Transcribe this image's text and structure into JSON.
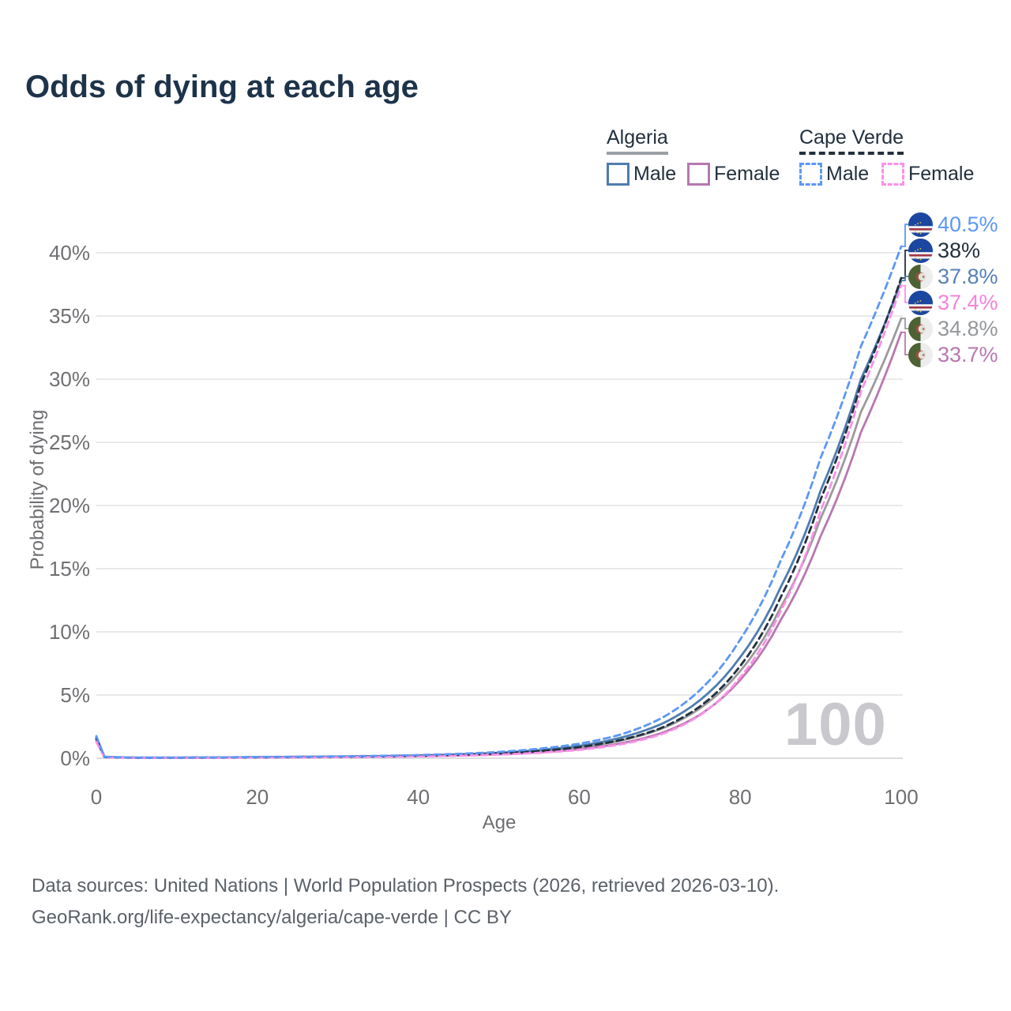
{
  "title": "Odds of dying at each age",
  "watermark": "100",
  "legend": {
    "groups": [
      {
        "name": "Algeria",
        "line_style": "solid",
        "line_color": "#9aa0a6",
        "items": [
          {
            "label": "Male",
            "color": "#4f7cb0"
          },
          {
            "label": "Female",
            "color": "#b778b0"
          }
        ]
      },
      {
        "name": "Cape Verde",
        "line_style": "dashed",
        "line_color": "#22303e",
        "items": [
          {
            "label": "Male",
            "color": "#5d97f5"
          },
          {
            "label": "Female",
            "color": "#fb90e8"
          }
        ]
      }
    ]
  },
  "chart_data": {
    "type": "line",
    "title": "Odds of dying at each age",
    "xlabel": "Age",
    "ylabel": "Probability of dying",
    "xlim": [
      0,
      100
    ],
    "ylim_percent": [
      0,
      42
    ],
    "xticks": [
      0,
      20,
      40,
      60,
      80,
      100
    ],
    "yticks_percent": [
      0,
      5,
      10,
      15,
      20,
      25,
      30,
      35,
      40
    ],
    "ytick_labels": [
      "0%",
      "5%",
      "10%",
      "15%",
      "20%",
      "25%",
      "30%",
      "35%",
      "40%"
    ],
    "grid": "horizontal",
    "legend_position": "top-right",
    "ages": [
      0,
      1,
      5,
      10,
      15,
      20,
      25,
      30,
      35,
      40,
      45,
      50,
      55,
      60,
      65,
      70,
      75,
      80,
      85,
      90,
      95,
      100
    ],
    "series": [
      {
        "name": "Algeria Both sexes",
        "country": "Algeria",
        "sex": "Both",
        "color": "#9b9b9b",
        "dashed": false,
        "flag": "algeria",
        "end_label": "34.8%",
        "end_value": 34.8,
        "label_color": "#95989c",
        "values": [
          1.55,
          0.1,
          0.04,
          0.04,
          0.05,
          0.08,
          0.1,
          0.12,
          0.15,
          0.19,
          0.26,
          0.37,
          0.55,
          0.85,
          1.38,
          2.28,
          3.95,
          6.9,
          11.9,
          19.0,
          27.4,
          34.8
        ]
      },
      {
        "name": "Algeria Female",
        "country": "Algeria",
        "sex": "Female",
        "color": "#b778b0",
        "dashed": false,
        "flag": "algeria",
        "end_label": "33.7%",
        "end_value": 33.7,
        "label_color": "#b778b0",
        "values": [
          1.4,
          0.09,
          0.04,
          0.04,
          0.05,
          0.06,
          0.08,
          0.1,
          0.12,
          0.16,
          0.22,
          0.31,
          0.46,
          0.71,
          1.16,
          1.95,
          3.45,
          6.2,
          10.9,
          17.6,
          25.8,
          33.7
        ]
      },
      {
        "name": "Algeria Male",
        "country": "Algeria",
        "sex": "Male",
        "color": "#4f7cb0",
        "dashed": false,
        "flag": "algeria",
        "end_label": "37.8%",
        "end_value": 37.8,
        "label_color": "#5581b5",
        "values": [
          1.7,
          0.11,
          0.05,
          0.05,
          0.06,
          0.09,
          0.11,
          0.13,
          0.17,
          0.22,
          0.3,
          0.43,
          0.64,
          0.98,
          1.6,
          2.65,
          4.6,
          8.0,
          13.5,
          21.2,
          30.0,
          37.8
        ]
      },
      {
        "name": "Cape Verde Both sexes",
        "country": "Cape Verde",
        "sex": "Both",
        "color": "#22303e",
        "dashed": true,
        "flag": "cape-verde",
        "end_label": "38%",
        "end_value": 38.0,
        "label_color": "#232f3b",
        "values": [
          1.55,
          0.1,
          0.04,
          0.04,
          0.06,
          0.08,
          0.1,
          0.12,
          0.15,
          0.2,
          0.27,
          0.38,
          0.57,
          0.88,
          1.42,
          2.35,
          4.1,
          7.3,
          12.7,
          20.5,
          29.6,
          38.0
        ]
      },
      {
        "name": "Cape Verde Female",
        "country": "Cape Verde",
        "sex": "Female",
        "color": "#fb90e8",
        "dashed": true,
        "flag": "cape-verde",
        "end_label": "37.4%",
        "end_value": 37.4,
        "label_color": "#f383db",
        "values": [
          1.3,
          0.08,
          0.03,
          0.03,
          0.04,
          0.06,
          0.07,
          0.09,
          0.11,
          0.15,
          0.2,
          0.29,
          0.43,
          0.66,
          1.08,
          1.85,
          3.4,
          6.4,
          11.6,
          19.6,
          29.0,
          37.4
        ]
      },
      {
        "name": "Cape Verde Male",
        "country": "Cape Verde",
        "sex": "Male",
        "color": "#5d97f5",
        "dashed": true,
        "flag": "cape-verde",
        "end_label": "40.5%",
        "end_value": 40.5,
        "label_color": "#5d97f5",
        "values": [
          1.75,
          0.12,
          0.05,
          0.05,
          0.07,
          0.1,
          0.12,
          0.15,
          0.19,
          0.25,
          0.35,
          0.5,
          0.75,
          1.15,
          1.85,
          3.1,
          5.4,
          9.4,
          15.6,
          23.8,
          32.6,
          40.5
        ]
      }
    ]
  },
  "footer": {
    "line1": "Data sources: United Nations | World Population Prospects (2026, retrieved 2026-03-10).",
    "line2": "GeoRank.org/life-expectancy/algeria/cape-verde | CC BY"
  }
}
